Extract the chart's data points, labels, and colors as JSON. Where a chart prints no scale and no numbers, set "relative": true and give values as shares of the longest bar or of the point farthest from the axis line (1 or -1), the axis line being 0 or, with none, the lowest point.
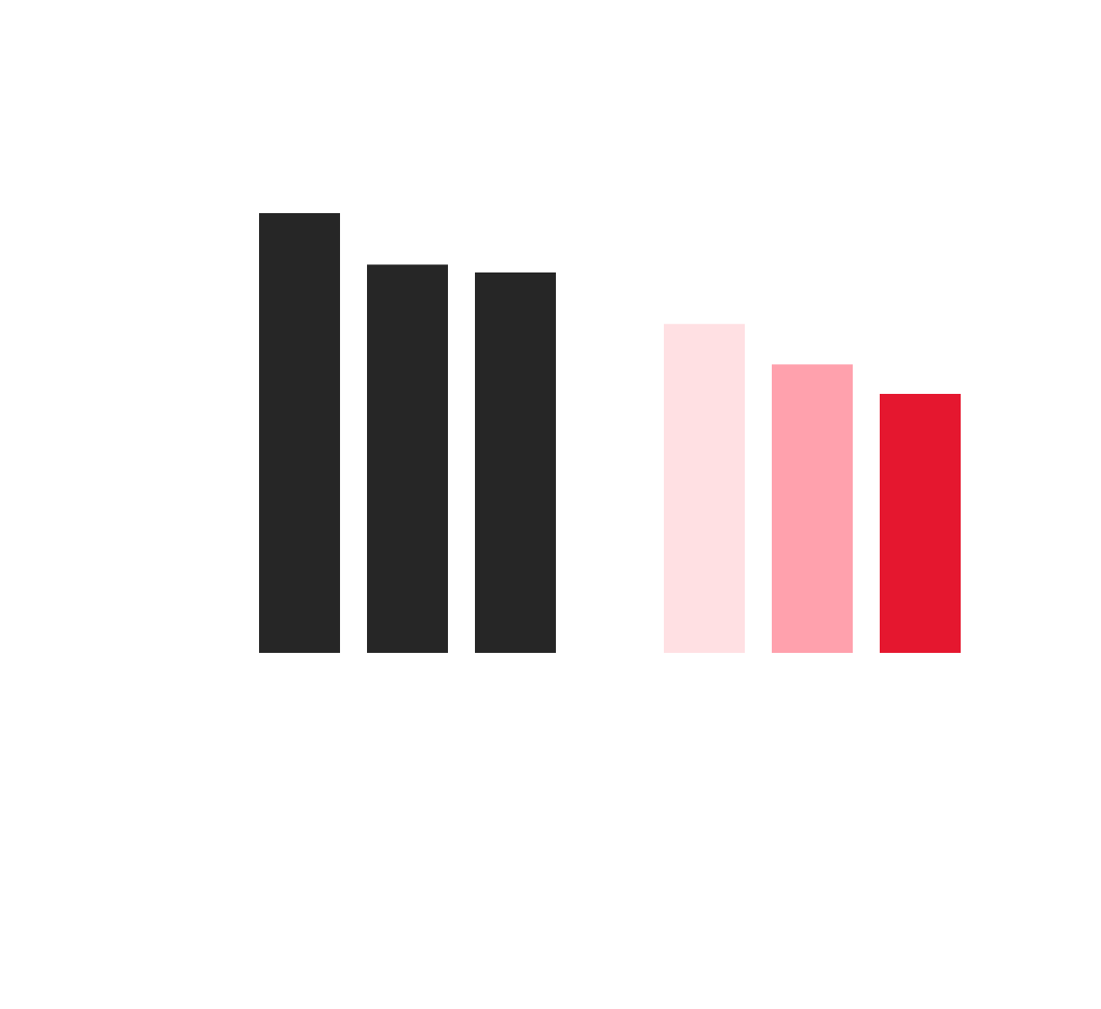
{
  "chart_data": {
    "type": "bar",
    "relative": true,
    "categories": [
      null,
      null
    ],
    "series": [
      {
        "colors": [
          "#262626",
          "#ffe0e3"
        ],
        "values": [
          1,
          0.748
        ]
      },
      {
        "colors": [
          "#262626",
          "#ffa1ad"
        ],
        "values": [
          0.883,
          0.656
        ]
      },
      {
        "colors": [
          "#262626",
          "#e5172f"
        ],
        "values": [
          0.865,
          0.589
        ]
      }
    ]
  }
}
